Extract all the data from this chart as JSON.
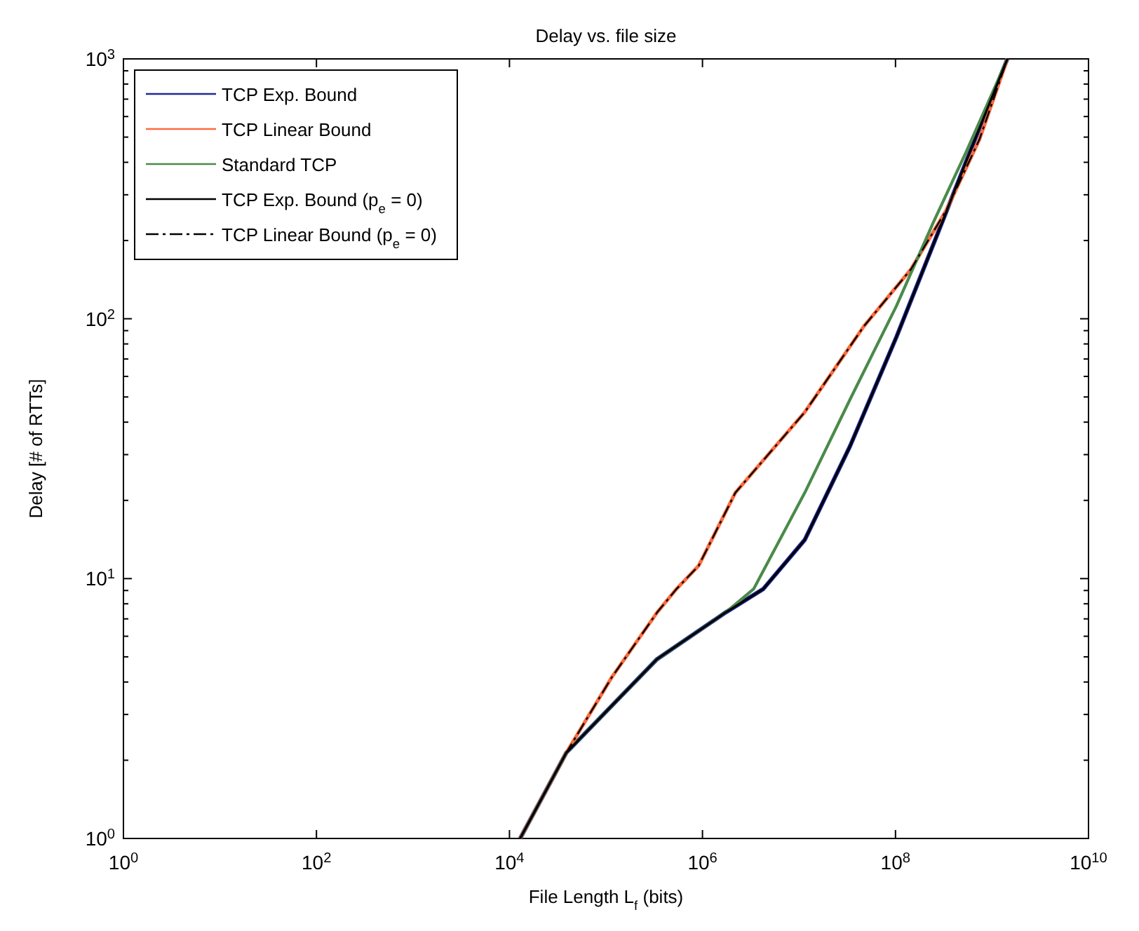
{
  "chart_data": {
    "type": "line",
    "title": "Delay vs. file size",
    "xlabel": "File Length L$_{f}$ (bits)",
    "ylabel": "Delay [# of RTTs]",
    "log": "xy",
    "grid": false,
    "legend": "top left",
    "marker": "none",
    "xlim": [
      1,
      10000000000
    ],
    "ylim": [
      1,
      1000
    ],
    "xticks": [
      {
        "value": 1,
        "label": "10$^{0}$"
      },
      {
        "value": 100,
        "label": "10$^{2}$"
      },
      {
        "value": 10000,
        "label": "10$^{4}$"
      },
      {
        "value": 1000000,
        "label": "10$^{6}$"
      },
      {
        "value": 100000000,
        "label": "10$^{8}$"
      },
      {
        "value": 10000000000,
        "label": "10$^{10}$"
      }
    ],
    "yticks": [
      {
        "value": 1,
        "label": "10$^{0}$"
      },
      {
        "value": 2,
        "label": null
      },
      {
        "value": 3,
        "label": null
      },
      {
        "value": 4,
        "label": null
      },
      {
        "value": 5,
        "label": null
      },
      {
        "value": 6,
        "label": null
      },
      {
        "value": 7,
        "label": null
      },
      {
        "value": 8,
        "label": null
      },
      {
        "value": 9,
        "label": null
      },
      {
        "value": 10,
        "label": "10$^{1}$"
      },
      {
        "value": 20,
        "label": null
      },
      {
        "value": 30,
        "label": null
      },
      {
        "value": 40,
        "label": null
      },
      {
        "value": 50,
        "label": null
      },
      {
        "value": 60,
        "label": null
      },
      {
        "value": 70,
        "label": null
      },
      {
        "value": 80,
        "label": null
      },
      {
        "value": 90,
        "label": null
      },
      {
        "value": 100,
        "label": "10$^{2}$"
      },
      {
        "value": 200,
        "label": null
      },
      {
        "value": 300,
        "label": null
      },
      {
        "value": 400,
        "label": null
      },
      {
        "value": 500,
        "label": null
      },
      {
        "value": 600,
        "label": null
      },
      {
        "value": 700,
        "label": null
      },
      {
        "value": 800,
        "label": null
      },
      {
        "value": 900,
        "label": null
      },
      {
        "value": 1000,
        "label": "10$^{3}$"
      }
    ],
    "series": [
      {
        "name": "TCP Exp. Bound",
        "color": "#1f2a9a",
        "line_style": "solid",
        "x": [
          12900,
          38900,
          114800,
          338800,
          1738000,
          4266000,
          11480000,
          33880000,
          102300000,
          275400000,
          588800000,
          1445000000
        ],
        "values": [
          1,
          2.14,
          3.24,
          4.9,
          7.41,
          9.12,
          14.1,
          32.4,
          85.1,
          214,
          437,
          1000
        ]
      },
      {
        "name": "TCP Linear Bound",
        "color": "#ff6a3d",
        "line_style": "solid",
        "x": [
          12900,
          38900,
          114800,
          338800,
          537000,
          912000,
          2190000,
          11480000,
          46770000,
          144500000,
          338800000,
          741000000,
          1445000000
        ],
        "values": [
          1,
          2.14,
          4.17,
          7.41,
          9.12,
          11.2,
          21.4,
          43.7,
          93.3,
          155,
          263,
          490,
          1000
        ]
      },
      {
        "name": "Standard TCP",
        "color": "#4a8a4a",
        "line_style": "solid",
        "x": [
          12900,
          38900,
          114800,
          338800,
          1738000,
          3388000,
          11480000,
          33880000,
          102300000,
          245500000,
          537000000,
          1445000000
        ],
        "values": [
          1,
          2.14,
          3.24,
          4.9,
          7.41,
          9.12,
          21.4,
          49,
          112,
          234,
          437,
          1000
        ]
      },
      {
        "name": "TCP Exp. Bound (p$_{e}$ = 0)",
        "color": "#000000",
        "line_style": "solid",
        "x": [
          12900,
          38900,
          114800,
          338800,
          1738000,
          4266000,
          11480000,
          33880000,
          102300000,
          275400000,
          588800000,
          1445000000
        ],
        "values": [
          1,
          2.14,
          3.24,
          4.9,
          7.41,
          9.12,
          14.1,
          32.4,
          85.1,
          214,
          437,
          1000
        ]
      },
      {
        "name": "TCP Linear Bound (p$_{e}$ = 0)",
        "color": "#000000",
        "line_style": "dashdot",
        "x": [
          12900,
          38900,
          114800,
          338800,
          537000,
          912000,
          2190000,
          11480000,
          46770000,
          144500000,
          338800000,
          741000000,
          1445000000
        ],
        "values": [
          1,
          2.14,
          4.17,
          7.41,
          9.12,
          11.2,
          21.4,
          43.7,
          93.3,
          155,
          263,
          490,
          1000
        ]
      }
    ]
  }
}
